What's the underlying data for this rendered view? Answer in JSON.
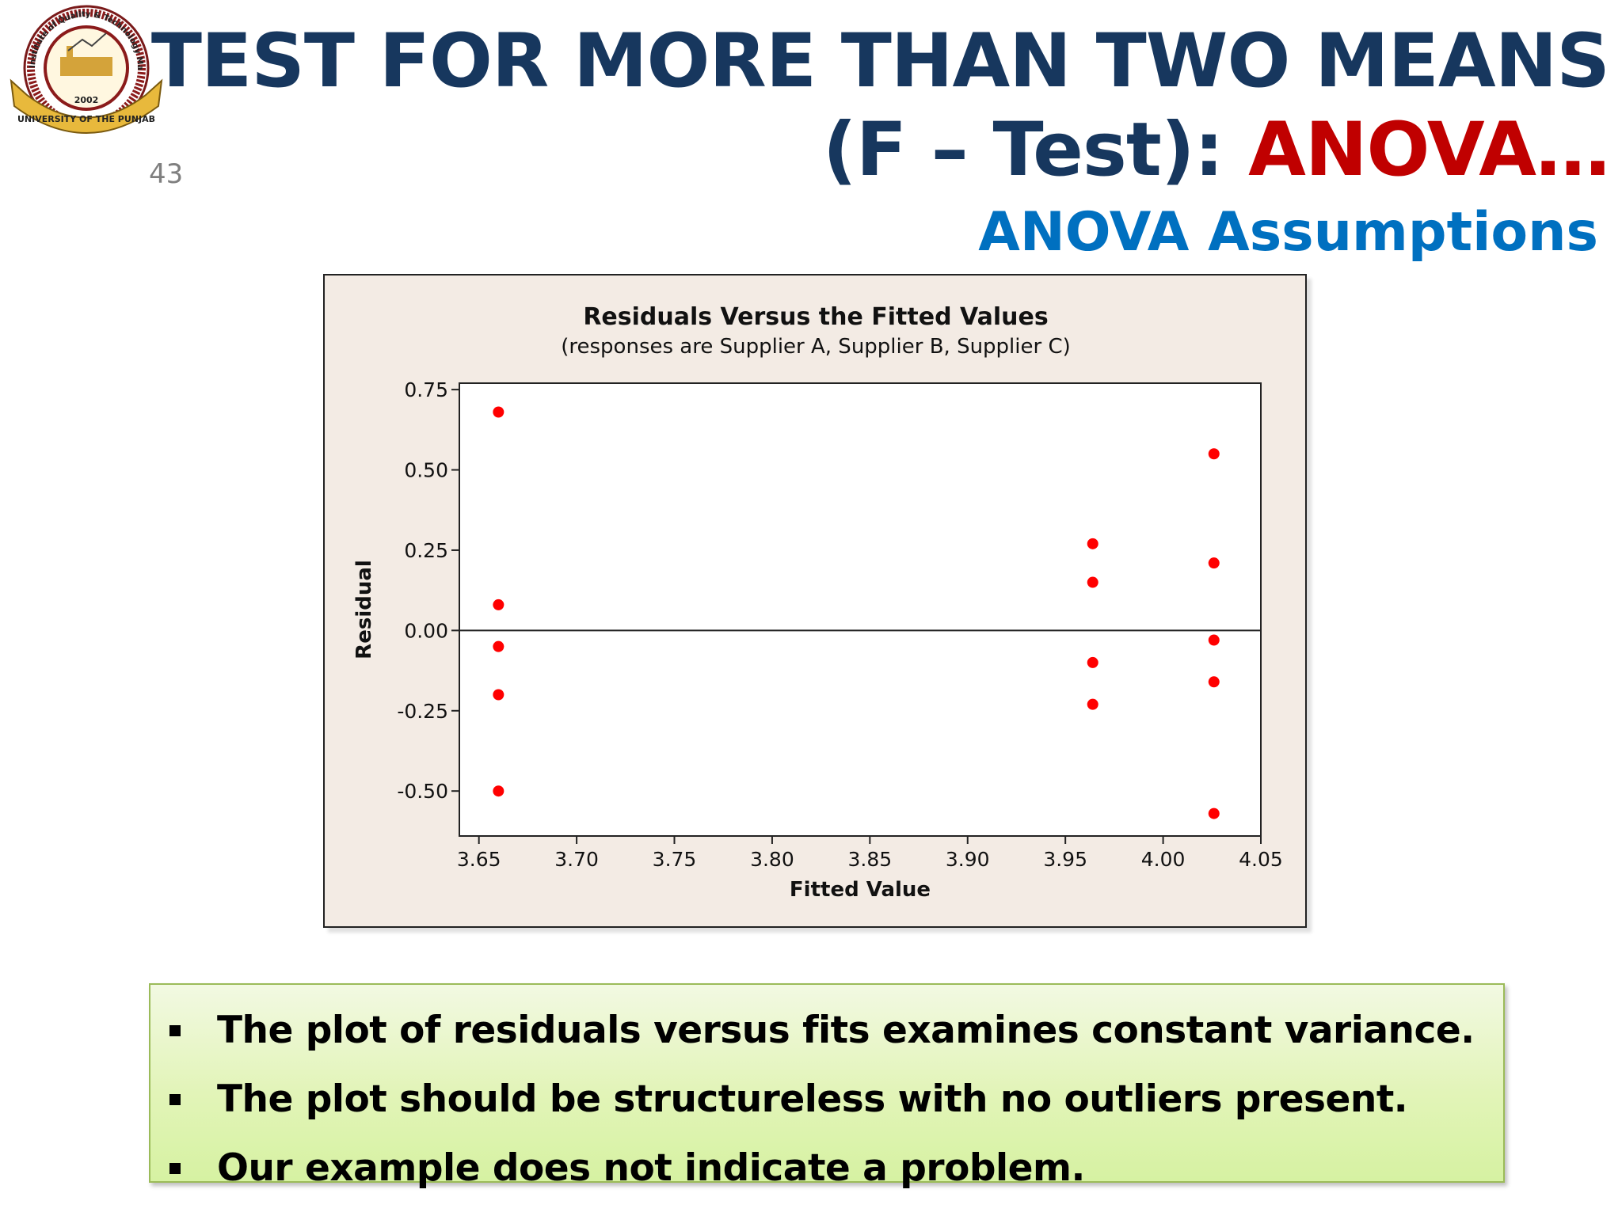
{
  "slide": {
    "number": "43",
    "title_line1": "TEST FOR MORE THAN TWO MEANS",
    "title_line2_prefix": "(F – Test): ",
    "title_line2_accent": "ANOVA…",
    "subtitle": "ANOVA Assumptions"
  },
  "logo": {
    "top_text": "Institute of Quality & Technology Management",
    "year": "2002",
    "banner_text": "UNIVERSITY OF THE PUNJAB"
  },
  "chart_data": {
    "type": "scatter",
    "title": "Residuals Versus the Fitted Values",
    "subtitle": "(responses are Supplier A, Supplier B, Supplier C)",
    "xlabel": "Fitted Value",
    "ylabel": "Residual",
    "xlim": [
      3.64,
      4.05
    ],
    "ylim": [
      -0.64,
      0.77
    ],
    "xticks": [
      3.65,
      3.7,
      3.75,
      3.8,
      3.85,
      3.9,
      3.95,
      4.0,
      4.05
    ],
    "xtick_labels": [
      "3.65",
      "3.70",
      "3.75",
      "3.80",
      "3.85",
      "3.90",
      "3.95",
      "4.00",
      "4.05"
    ],
    "yticks": [
      0.75,
      0.5,
      0.25,
      0.0,
      -0.25,
      -0.5
    ],
    "ytick_labels": [
      "0.75",
      "0.50",
      "0.25",
      "0.00",
      "-0.25",
      "-0.50"
    ],
    "reference_line_y": 0,
    "grid": false,
    "point_color": "#ff0000",
    "points": [
      {
        "x": 3.66,
        "y": 0.68
      },
      {
        "x": 3.66,
        "y": 0.08
      },
      {
        "x": 3.66,
        "y": -0.05
      },
      {
        "x": 3.66,
        "y": -0.2
      },
      {
        "x": 3.66,
        "y": -0.5
      },
      {
        "x": 3.964,
        "y": 0.27
      },
      {
        "x": 3.964,
        "y": 0.15
      },
      {
        "x": 3.964,
        "y": -0.1
      },
      {
        "x": 3.964,
        "y": -0.23
      },
      {
        "x": 4.026,
        "y": 0.55
      },
      {
        "x": 4.026,
        "y": 0.21
      },
      {
        "x": 4.026,
        "y": -0.03
      },
      {
        "x": 4.026,
        "y": -0.16
      },
      {
        "x": 4.026,
        "y": -0.57
      }
    ]
  },
  "notes": [
    "The plot of residuals versus fits examines constant variance.",
    "The plot should be structureless with no outliers present.",
    "Our example does not indicate a problem."
  ],
  "colors": {
    "title": "#17375e",
    "accent": "#c00000",
    "subtitle": "#0070c0"
  }
}
